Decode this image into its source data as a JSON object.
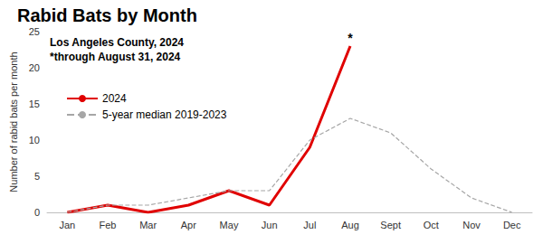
{
  "chart_data": {
    "type": "line",
    "title": "Rabid Bats by Month",
    "subtitle": [
      "Los Angeles County, 2024",
      "*through August 31, 2024"
    ],
    "ylabel": "Number of rabid bats per month",
    "categories": [
      "Jan",
      "Feb",
      "Mar",
      "Apr",
      "May",
      "Jun",
      "Jul",
      "Aug",
      "Sept",
      "Oct",
      "Nov",
      "Dec"
    ],
    "series": [
      {
        "name": "2024",
        "color": "#e00000",
        "line_style": "solid",
        "values": [
          0,
          1,
          0,
          1,
          3,
          1,
          9,
          23,
          null,
          null,
          null,
          null
        ]
      },
      {
        "name": "5-year median 2019-2023",
        "color": "#a6a6a6",
        "line_style": "dashed",
        "values": [
          0,
          1,
          1,
          2,
          3,
          3,
          10,
          13,
          11,
          6,
          2,
          0
        ]
      }
    ],
    "annotations": [
      {
        "text": "*",
        "category": "Aug",
        "series": "2024"
      }
    ],
    "ylim": [
      0,
      25
    ],
    "yticks": [
      0,
      5,
      10,
      15,
      20,
      25
    ],
    "grid": false,
    "legend": "left"
  }
}
